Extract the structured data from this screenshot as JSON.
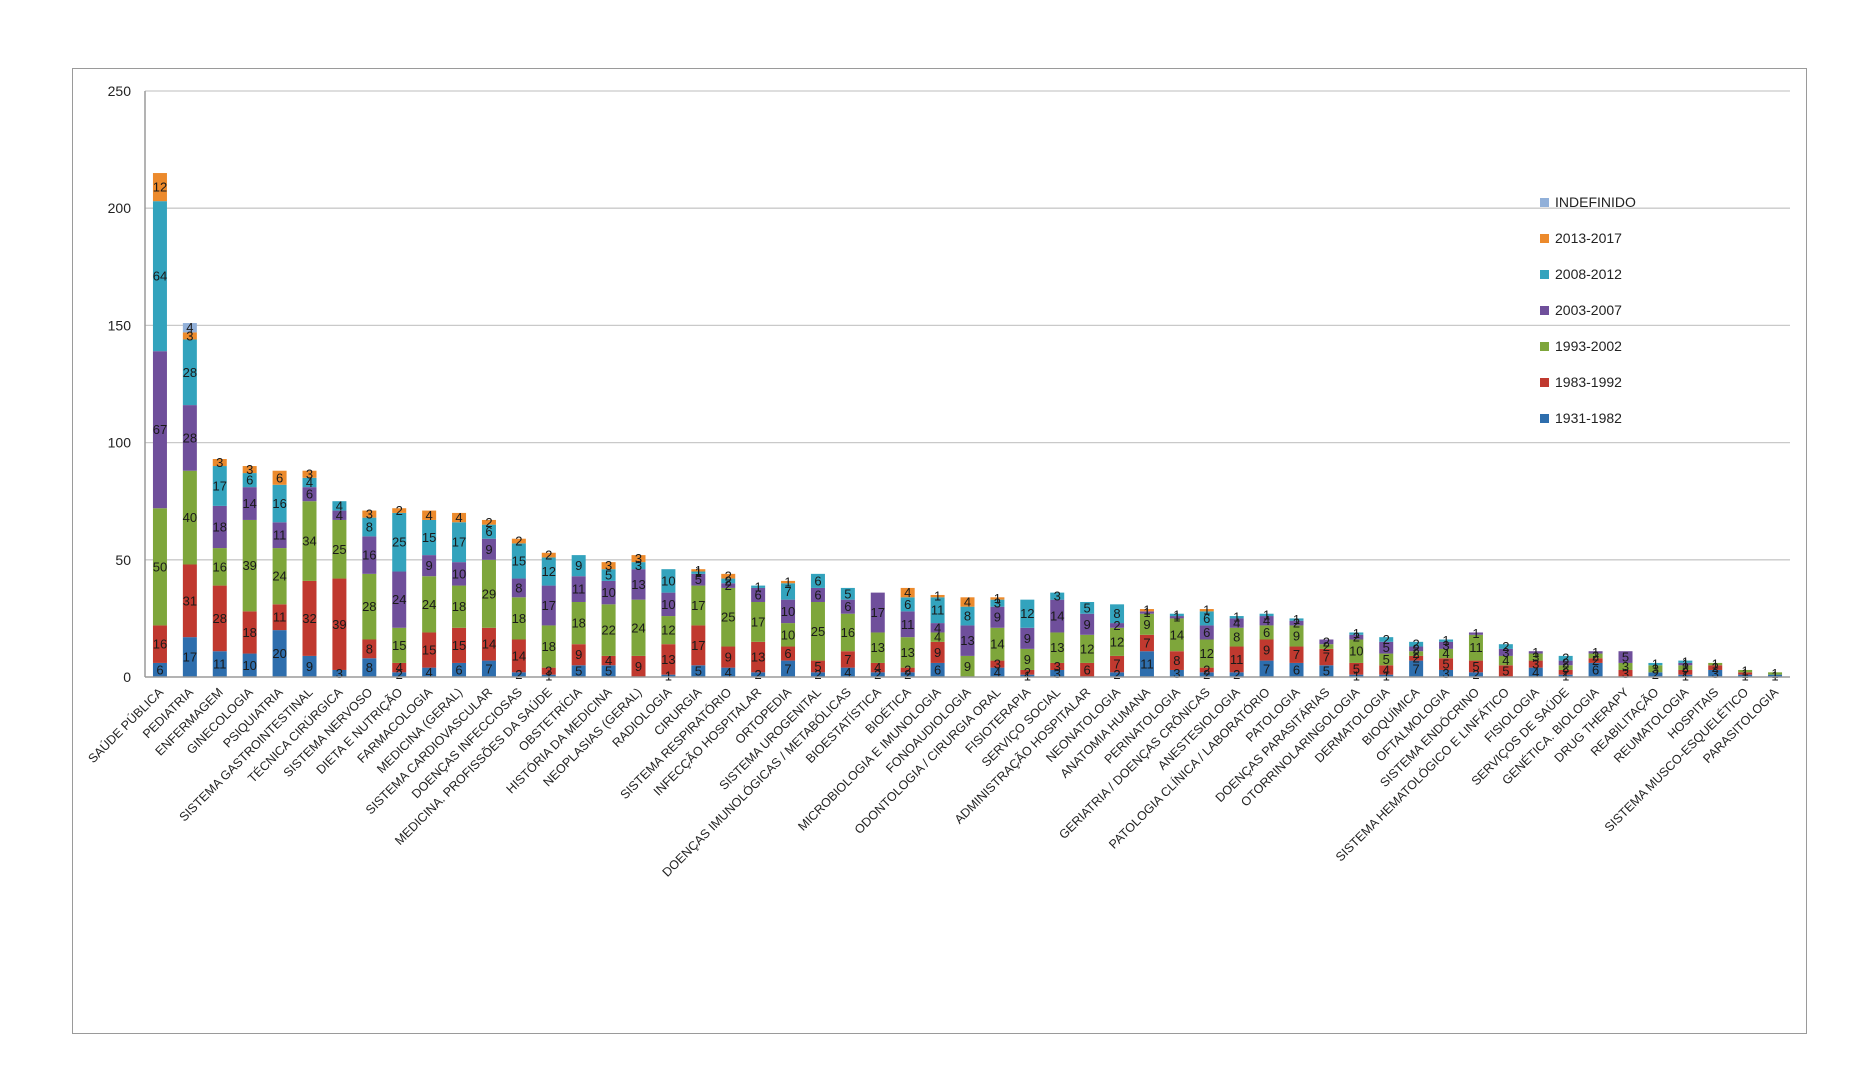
{
  "chart_data": {
    "type": "bar",
    "stacked": true,
    "title": "",
    "xlabel": "",
    "ylabel": "",
    "ylim": [
      0,
      250
    ],
    "yticks": [
      "0",
      "50",
      "100",
      "150",
      "200",
      "250"
    ],
    "grid": true,
    "legend_position": "right",
    "categories": [
      "SAÚDE PÚBLICA",
      "PEDIATRIA",
      "ENFERMAGEM",
      "GINECOLOGIA",
      "PSIQUIATRIA",
      "SISTEMA GASTROINTESTINAL",
      "TÉCNICA CIRÚRGICA",
      "SISTEMA NERVOSO",
      "DIETA E NUTRIÇÃO",
      "FARMACOLOGIA",
      "MEDICINA (GERAL)",
      "SISTEMA CARDIOVASCULAR",
      "DOENÇAS INFECCIOSAS",
      "MEDICINA. PROFISSÕES DA SAÚDE",
      "OBSTETRÍCIA",
      "HISTÓRIA DA MEDICINA",
      "NEOPLASIAS (GERAL)",
      "RADIOLOGIA",
      "CIRURGIA",
      "SISTEMA RESPIRATÓRIO",
      "INFECÇÃO HOSPITALAR",
      "ORTOPEDIA",
      "SISTEMA UROGENITAL",
      "DOENÇAS IMUNOLÓGICAS / METABÓLICAS",
      "BIOESTATÍSTICA",
      "BIOÉTICA",
      "MICROBIOLOGIA E IMUNOLOGIA",
      "FONOAUDIOLOGIA",
      "ODONTOLOGIA / CIRURGIA ORAL",
      "FISIOTERAPIA",
      "SERVIÇO SOCIAL",
      "ADMINISTRAÇÃO HOSPITALAR",
      "NEONATOLOGIA",
      "ANATOMIA HUMANA",
      "PERINATOLOGIA",
      "GERIATRIA / DOENÇAS CRÔNICAS",
      "ANESTESIOLOGIA",
      "PATOLOGIA CLÍNICA / LABORATÓRIO",
      "PATOLOGIA",
      "DOENÇAS PARASITÁRIAS",
      "OTORRINOLARINGOLOGIA",
      "DERMATOLOGIA",
      "BIOQUÍMICA",
      "OFTALMOLOGIA",
      "SISTEMA ENDÓCRINO",
      "SISTEMA HEMATOLÓGICO E LINFÁTICO",
      "FISIOLOGIA",
      "SERVIÇOS DE SAÚDE",
      "GENÉTICA. BIOLOGIA",
      "DRUG THERAPY",
      "REABILITAÇÃO",
      "REUMATOLOGIA",
      "HOSPITAIS",
      "SISTEMA MUSCO-ESQUELÉTICO",
      "PARASITOLOGIA"
    ],
    "series": [
      {
        "name": "1931-1982",
        "color": "#2e6ead",
        "values": [
          6,
          17,
          11,
          10,
          20,
          9,
          3,
          8,
          2,
          4,
          6,
          7,
          2,
          1,
          5,
          5,
          0,
          1,
          5,
          4,
          2,
          7,
          2,
          4,
          2,
          2,
          6,
          0,
          4,
          1,
          3,
          0,
          2,
          11,
          3,
          2,
          2,
          7,
          6,
          5,
          1,
          1,
          7,
          3,
          2,
          0,
          4,
          1,
          6,
          0,
          2,
          1,
          3,
          1,
          1
        ]
      },
      {
        "name": "1983-1992",
        "color": "#c0392f",
        "values": [
          16,
          31,
          28,
          18,
          11,
          32,
          39,
          8,
          4,
          15,
          15,
          14,
          14,
          3,
          9,
          4,
          9,
          13,
          17,
          9,
          13,
          6,
          5,
          7,
          4,
          2,
          9,
          0,
          3,
          2,
          3,
          6,
          7,
          7,
          8,
          2,
          11,
          9,
          7,
          7,
          5,
          4,
          2,
          5,
          5,
          5,
          3,
          2,
          2,
          3,
          0,
          2,
          2,
          1,
          0
        ]
      },
      {
        "name": "1993-2002",
        "color": "#7ea63b",
        "values": [
          50,
          40,
          16,
          39,
          24,
          34,
          25,
          28,
          15,
          24,
          18,
          29,
          18,
          18,
          18,
          22,
          24,
          12,
          17,
          25,
          17,
          10,
          25,
          16,
          13,
          13,
          4,
          9,
          14,
          9,
          13,
          12,
          12,
          9,
          14,
          12,
          8,
          6,
          9,
          2,
          10,
          5,
          2,
          4,
          11,
          4,
          3,
          2,
          2,
          3,
          3,
          2,
          1,
          1,
          1
        ]
      },
      {
        "name": "2003-2007",
        "color": "#6f4f9b",
        "values": [
          67,
          28,
          18,
          14,
          11,
          6,
          4,
          16,
          24,
          9,
          10,
          9,
          8,
          17,
          11,
          10,
          13,
          10,
          5,
          2,
          6,
          10,
          6,
          6,
          17,
          11,
          4,
          13,
          9,
          9,
          14,
          9,
          2,
          1,
          1,
          6,
          4,
          4,
          2,
          2,
          2,
          5,
          2,
          3,
          1,
          3,
          1,
          2,
          1,
          5,
          0,
          1,
          0,
          0,
          0
        ]
      },
      {
        "name": "2008-2012",
        "color": "#33a3bd",
        "values": [
          64,
          28,
          17,
          6,
          16,
          4,
          4,
          8,
          25,
          15,
          17,
          6,
          15,
          12,
          9,
          5,
          3,
          10,
          1,
          2,
          1,
          7,
          6,
          5,
          0,
          6,
          11,
          8,
          3,
          12,
          3,
          5,
          8,
          0,
          1,
          6,
          1,
          1,
          1,
          0,
          1,
          2,
          2,
          1,
          0,
          2,
          0,
          2,
          0,
          0,
          1,
          1,
          0,
          0,
          0
        ]
      },
      {
        "name": "2013-2017",
        "color": "#ec8a2c",
        "values": [
          12,
          3,
          3,
          3,
          6,
          3,
          0,
          3,
          2,
          4,
          4,
          2,
          2,
          2,
          0,
          3,
          3,
          0,
          1,
          2,
          0,
          1,
          0,
          0,
          0,
          4,
          1,
          4,
          1,
          0,
          0,
          0,
          0,
          1,
          0,
          1,
          0,
          0,
          0,
          0,
          0,
          0,
          0,
          0,
          0,
          0,
          0,
          0,
          0,
          0,
          0,
          0,
          0,
          0,
          0
        ]
      },
      {
        "name": "INDEFINIDO",
        "color": "#91b0d9",
        "values": [
          0,
          4,
          0,
          0,
          0,
          0,
          0,
          0,
          0,
          0,
          0,
          0,
          0,
          0,
          0,
          0,
          0,
          0,
          0,
          0,
          0,
          0,
          0,
          0,
          0,
          0,
          0,
          0,
          0,
          0,
          0,
          0,
          0,
          0,
          0,
          0,
          0,
          0,
          0,
          0,
          0,
          0,
          0,
          0,
          0,
          0,
          0,
          0,
          0,
          0,
          0,
          0,
          0,
          0,
          0
        ]
      }
    ],
    "legend_order": [
      "INDEFINIDO",
      "2013-2017",
      "2008-2012",
      "2003-2007",
      "1993-2002",
      "1983-1992",
      "1931-1982"
    ]
  }
}
